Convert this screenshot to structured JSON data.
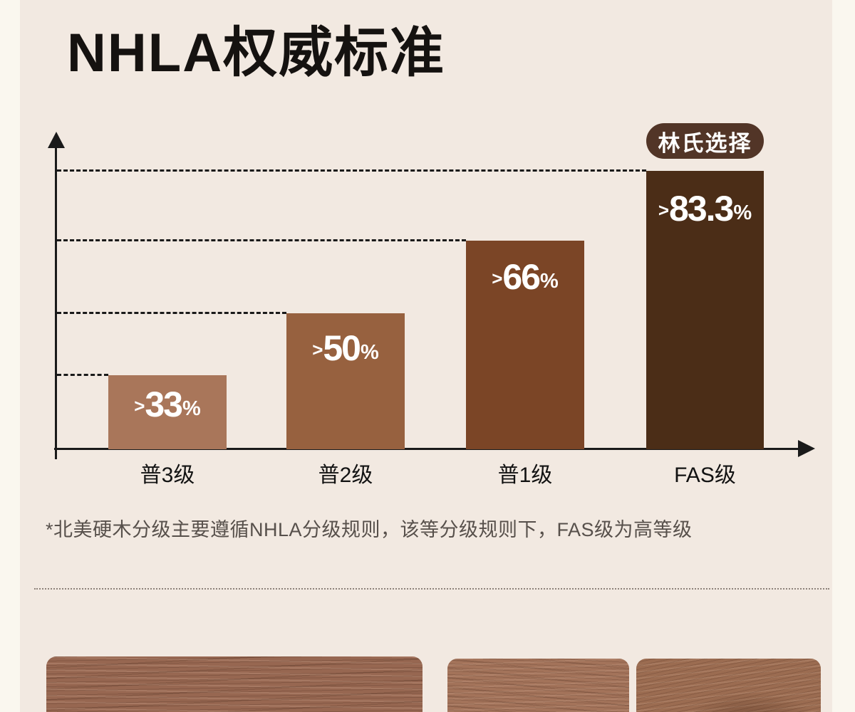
{
  "page": {
    "title": "NHLA权威标准",
    "footnote": "*北美硬木分级主要遵循NHLA分级规则，该等分级规则下，FAS级为高等级"
  },
  "badge": {
    "label": "林氏选择"
  },
  "chart_data": {
    "type": "bar",
    "title": "NHLA权威标准",
    "categories": [
      "普3级",
      "普2级",
      "普1级",
      "FAS级"
    ],
    "values": [
      33,
      50,
      66,
      83.3
    ],
    "bars": [
      {
        "category": "普3级",
        "value": 33,
        "prefix": ">",
        "number": "33",
        "suffix": "%",
        "color": "#a9765a"
      },
      {
        "category": "普2级",
        "value": 50,
        "prefix": ">",
        "number": "50",
        "suffix": "%",
        "color": "#97613f"
      },
      {
        "category": "普1级",
        "value": 66,
        "prefix": ">",
        "number": "66",
        "suffix": "%",
        "color": "#7b4526"
      },
      {
        "category": "FAS级",
        "value": 83.3,
        "prefix": ">",
        "number": "83.3",
        "suffix": "%",
        "color": "#4b2d17"
      }
    ],
    "xlabel": "",
    "ylabel": "",
    "ylim": [
      0,
      100
    ],
    "grid": "dashed horizontal guide line from y-axis to each bar top",
    "legend": "none",
    "annotation": "林氏选择 badge above FAS级 bar",
    "axis_color": "#1a1a1a",
    "value_label_color": "#ffffff"
  },
  "colors": {
    "background": "#f2e9e1",
    "page_edge": "#faf7ef",
    "axis": "#1a1a1a",
    "badge_bg": "#523527",
    "badge_text": "#ffffff",
    "footnote_text": "#57504b",
    "divider": "#8d827a"
  },
  "gallery": {
    "count": 3,
    "kind": "wood texture samples, partially visible"
  }
}
